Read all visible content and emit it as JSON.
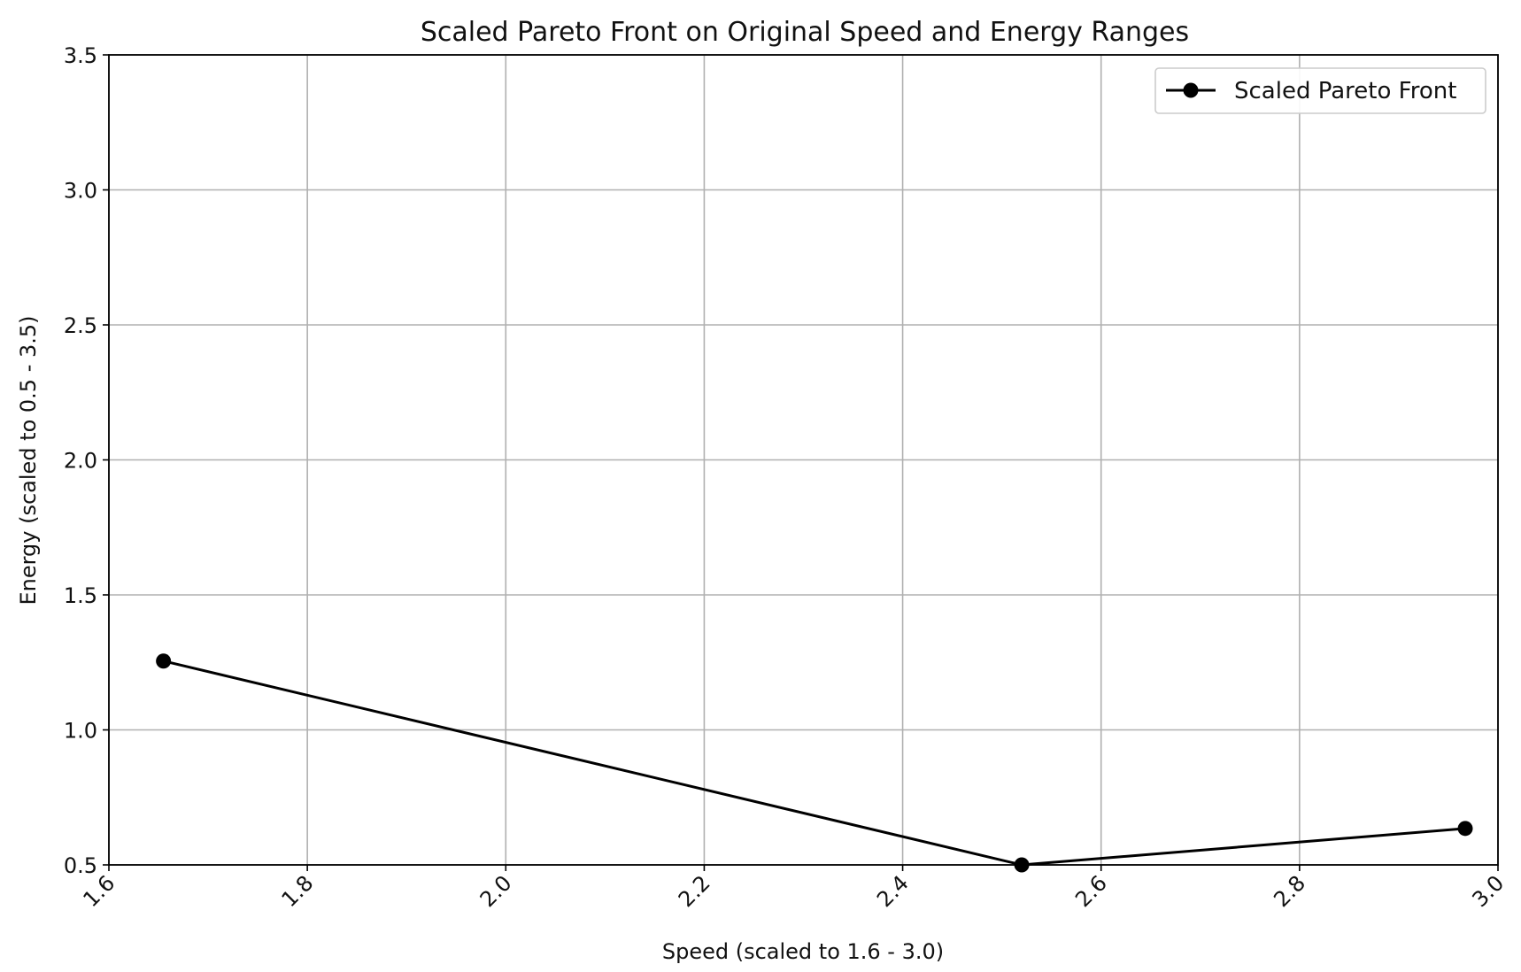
{
  "chart_data": {
    "type": "line",
    "title": "Scaled Pareto Front on Original Speed and Energy Ranges",
    "xlabel": "Speed (scaled to 1.6 - 3.0)",
    "ylabel": "Energy (scaled to 0.5 - 3.5)",
    "xlim": [
      1.6,
      3.0
    ],
    "ylim": [
      0.5,
      3.5
    ],
    "xticks": [
      "1.6",
      "1.8",
      "2.0",
      "2.2",
      "2.4",
      "2.6",
      "2.8",
      "3.0"
    ],
    "yticks": [
      "0.5",
      "1.0",
      "1.5",
      "2.0",
      "2.5",
      "3.0",
      "3.5"
    ],
    "grid": true,
    "legend_position": "top-right",
    "series": [
      {
        "name": "Scaled Pareto Front",
        "color": "#000000",
        "marker": "circle",
        "x": [
          1.655,
          2.52,
          2.967
        ],
        "y": [
          1.255,
          0.5,
          0.635
        ]
      }
    ]
  }
}
